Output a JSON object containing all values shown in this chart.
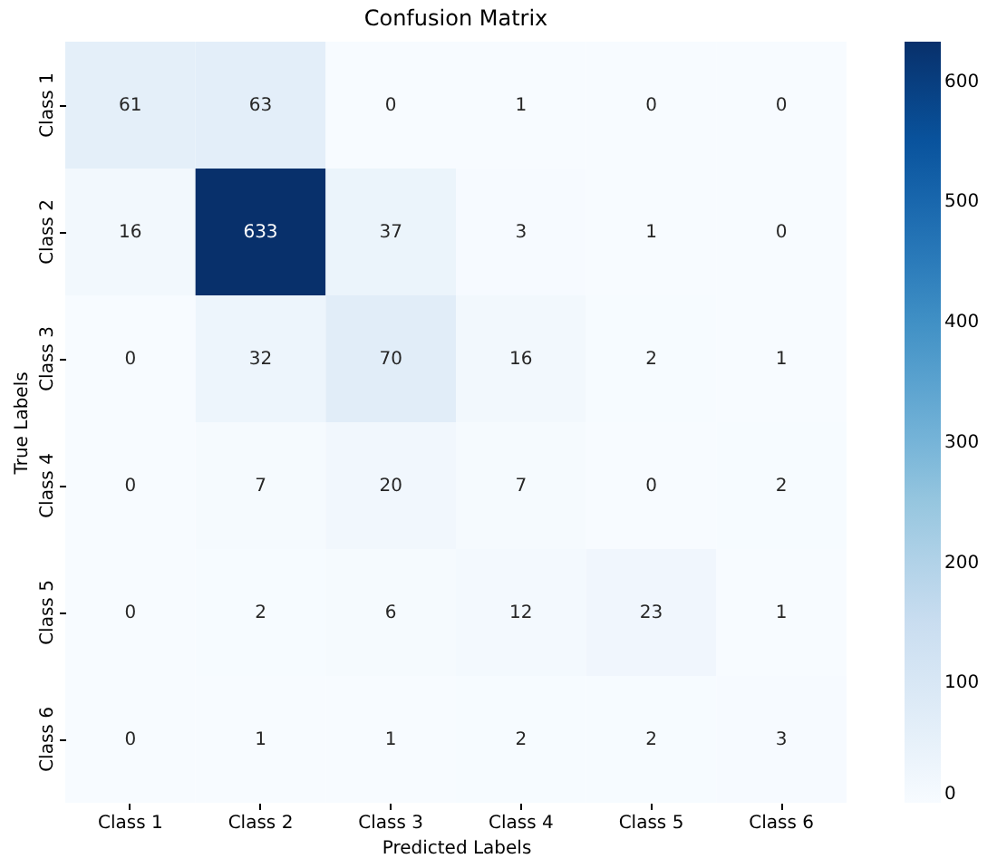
{
  "chart_data": {
    "type": "heatmap",
    "title": "Confusion Matrix",
    "xlabel": "Predicted Labels",
    "ylabel": "True Labels",
    "categories": [
      "Class 1",
      "Class 2",
      "Class 3",
      "Class 4",
      "Class 5",
      "Class 6"
    ],
    "y_categories": [
      "Class 1",
      "Class 2",
      "Class 3",
      "Class 4",
      "Class 5",
      "Class 6"
    ],
    "cells": [
      [
        61,
        63,
        0,
        1,
        0,
        0
      ],
      [
        16,
        633,
        37,
        3,
        1,
        0
      ],
      [
        0,
        32,
        70,
        16,
        2,
        1
      ],
      [
        0,
        7,
        20,
        7,
        0,
        2
      ],
      [
        0,
        2,
        6,
        12,
        23,
        1
      ],
      [
        0,
        1,
        1,
        2,
        2,
        3
      ]
    ],
    "clim": [
      0,
      633
    ],
    "cticks": [
      0,
      100,
      200,
      300,
      400,
      500,
      600
    ],
    "data_labels": true
  }
}
